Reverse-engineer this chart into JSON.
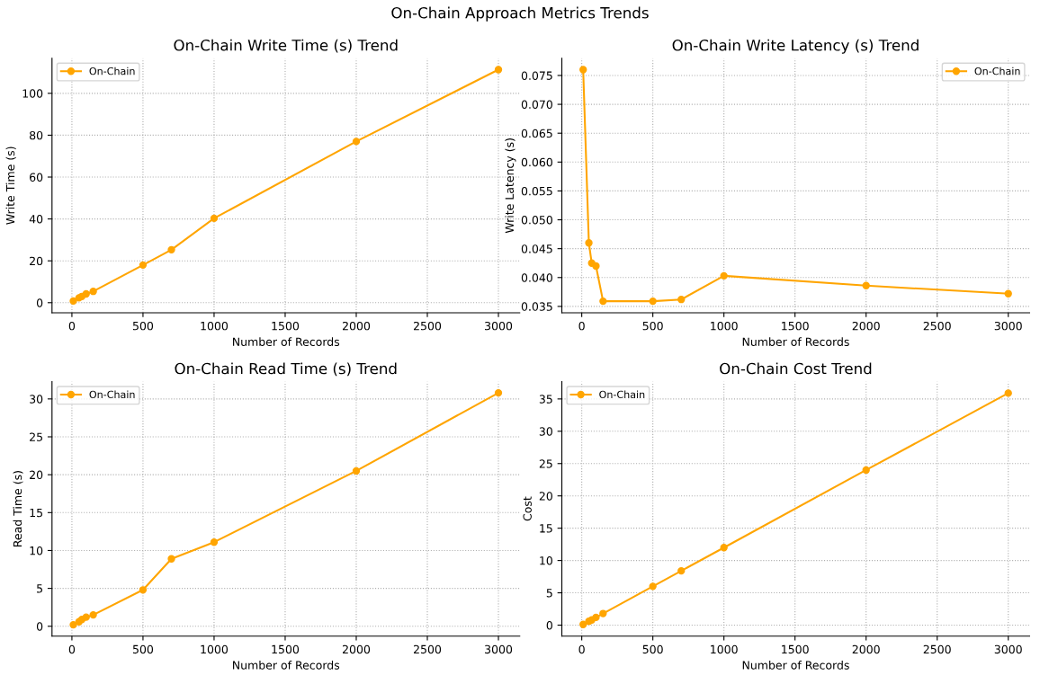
{
  "chart_data": [
    {
      "type": "line",
      "annotations": [
        "On-Chain Approach Metrics Trends"
      ],
      "title": "On-Chain Write Time (s) Trend",
      "xlabel": "Number of Records",
      "ylabel": "Write Time (s)",
      "x": [
        10,
        50,
        70,
        100,
        150,
        500,
        700,
        1000,
        2000,
        3000
      ],
      "series": [
        {
          "name": "On-Chain",
          "color": "#ffa500",
          "values": [
            0.8,
            2.3,
            3.0,
            4.2,
            5.4,
            18,
            25.3,
            40.3,
            77,
            111.3
          ]
        }
      ],
      "xlim": [
        -140,
        3150
      ],
      "xticks": [
        0,
        500,
        1000,
        1500,
        2000,
        2500,
        3000
      ],
      "ylim": [
        -4.8,
        116.8
      ],
      "yticks": [
        0,
        20,
        40,
        60,
        80,
        100
      ],
      "grid": true,
      "legend": "top left",
      "marker": "circle",
      "line_style": "solid"
    },
    {
      "type": "line",
      "title": "On-Chain Write Latency (s) Trend",
      "xlabel": "Number of Records",
      "ylabel": "Write Latency (s)",
      "x": [
        10,
        50,
        70,
        100,
        150,
        500,
        700,
        1000,
        2000,
        3000
      ],
      "series": [
        {
          "name": "On-Chain",
          "color": "#ffa500",
          "values": [
            0.076,
            0.046,
            0.0425,
            0.042,
            0.0359,
            0.0359,
            0.0362,
            0.0403,
            0.0386,
            0.0372
          ]
        }
      ],
      "xlim": [
        -140,
        3150
      ],
      "xticks": [
        0,
        500,
        1000,
        1500,
        2000,
        2500,
        3000
      ],
      "ylim": [
        0.0339,
        0.078
      ],
      "yticks": [
        {
          "value": 0.035,
          "label": "0.035"
        },
        {
          "value": 0.04,
          "label": "0.040"
        },
        {
          "value": 0.045,
          "label": "0.045"
        },
        {
          "value": 0.05,
          "label": "0.050"
        },
        {
          "value": 0.055,
          "label": "0.055"
        },
        {
          "value": 0.06,
          "label": "0.060"
        },
        {
          "value": 0.065,
          "label": "0.065"
        },
        {
          "value": 0.07,
          "label": "0.070"
        },
        {
          "value": 0.075,
          "label": "0.075"
        }
      ],
      "grid": true,
      "legend": "top right",
      "marker": "circle",
      "line_style": "solid"
    },
    {
      "type": "line",
      "title": "On-Chain Read Time (s) Trend",
      "xlabel": "Number of Records",
      "ylabel": "Read Time (s)",
      "x": [
        10,
        50,
        70,
        100,
        150,
        500,
        700,
        1000,
        2000,
        3000
      ],
      "series": [
        {
          "name": "On-Chain",
          "color": "#ffa500",
          "values": [
            0.2,
            0.6,
            0.9,
            1.2,
            1.5,
            4.8,
            8.9,
            11.1,
            20.5,
            30.8
          ]
        }
      ],
      "xlim": [
        -140,
        3150
      ],
      "xticks": [
        0,
        500,
        1000,
        1500,
        2000,
        2500,
        3000
      ],
      "ylim": [
        -1.3,
        32.3
      ],
      "yticks": [
        0,
        5,
        10,
        15,
        20,
        25,
        30
      ],
      "grid": true,
      "legend": "top left",
      "marker": "circle",
      "line_style": "solid"
    },
    {
      "type": "line",
      "title": "On-Chain Cost Trend",
      "xlabel": "Number of Records",
      "ylabel": "Cost",
      "x": [
        10,
        50,
        70,
        100,
        150,
        500,
        700,
        1000,
        2000,
        3000
      ],
      "series": [
        {
          "name": "On-Chain",
          "color": "#ffa500",
          "values": [
            0.1,
            0.6,
            0.8,
            1.2,
            1.8,
            6,
            8.4,
            12,
            24,
            35.9
          ]
        }
      ],
      "xlim": [
        -140,
        3150
      ],
      "xticks": [
        0,
        500,
        1000,
        1500,
        2000,
        2500,
        3000
      ],
      "ylim": [
        -1.7,
        37.7
      ],
      "yticks": [
        0,
        5,
        10,
        15,
        20,
        25,
        30,
        35
      ],
      "grid": true,
      "legend": "top left",
      "marker": "circle",
      "line_style": "solid"
    }
  ]
}
